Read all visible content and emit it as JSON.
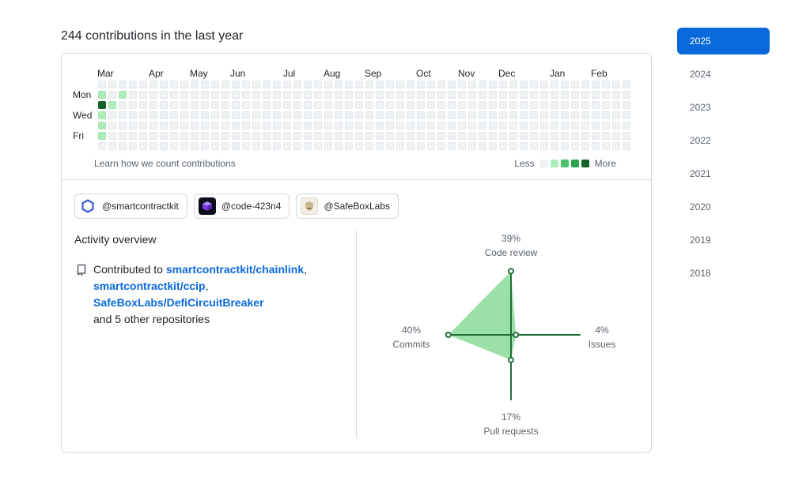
{
  "heading": "244 contributions in the last year",
  "graph": {
    "months": [
      "Mar",
      "Apr",
      "May",
      "Jun",
      "Jul",
      "Aug",
      "Sep",
      "Oct",
      "Nov",
      "Dec",
      "Jan",
      "Feb"
    ],
    "day_labels": [
      "Mon",
      "Wed",
      "Fri"
    ],
    "learn_link": "Learn how we count contributions",
    "legend_less": "Less",
    "legend_more": "More",
    "colors": [
      "#eff2f5",
      "#aceebb",
      "#4ac26b",
      "#2da44e",
      "#116329"
    ],
    "levels": [
      "0000000000000000000000000000000000000000000000000000",
      "1010000000000000000000000000000000000000000000000000",
      "4100000000000000000000000000000000000000000000000000",
      "1000000000000000000000000000000000000000000000000000",
      "1000000000000000000000000000000000000000000000000000",
      "1000000000000000000000000000000000000000000000000000",
      "0000000000000000000000000000000000000000000000000000"
    ]
  },
  "orgs": [
    {
      "name": "@smartcontractkit",
      "icon": "hexagon-icon"
    },
    {
      "name": "@code-423n4",
      "icon": "cube-icon"
    },
    {
      "name": "@SafeBoxLabs",
      "icon": "shield-icon"
    }
  ],
  "activity": {
    "title": "Activity overview",
    "prefix": "Contributed to",
    "repos": [
      "smartcontractkit/chainlink",
      "smartcontractkit/ccip",
      "SafeBoxLabs/DefiCircuitBreaker"
    ],
    "suffix": "and 5 other repositories",
    "radar": {
      "code_review": {
        "pct": "39%",
        "label": "Code review",
        "value": 39
      },
      "issues": {
        "pct": "4%",
        "label": "Issues",
        "value": 4
      },
      "pull_requests": {
        "pct": "17%",
        "label": "Pull requests",
        "value": 17
      },
      "commits": {
        "pct": "40%",
        "label": "Commits",
        "value": 40
      }
    }
  },
  "years": [
    "2025",
    "2024",
    "2023",
    "2022",
    "2021",
    "2020",
    "2019",
    "2018"
  ],
  "active_year": "2025"
}
